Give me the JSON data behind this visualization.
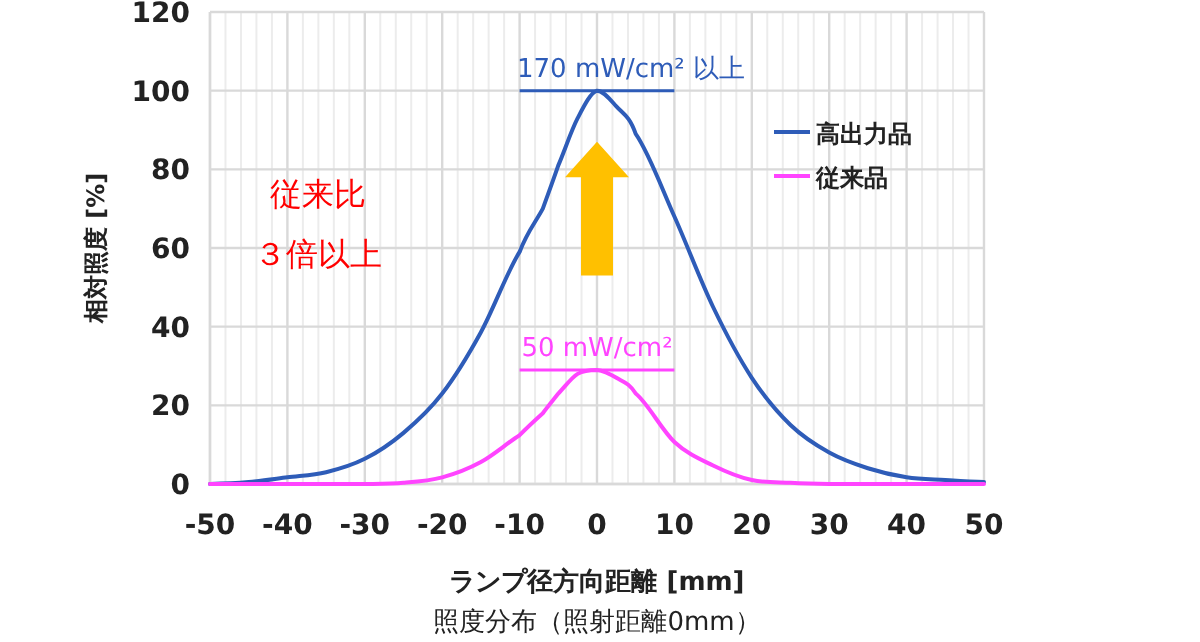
{
  "chart_data": {
    "type": "line",
    "xlabel": "ランプ径方向距離 [mm]",
    "ylabel": "相対照度 [%]",
    "xlim": [
      -50,
      50
    ],
    "xticks": [
      -50,
      -40,
      -30,
      -20,
      -10,
      0,
      10,
      20,
      30,
      40,
      50
    ],
    "ylim": [
      0,
      120
    ],
    "yticks": [
      0,
      20,
      40,
      60,
      80,
      100,
      120
    ],
    "grid": true,
    "legend": "top right",
    "line_style": "solid",
    "marker": "none",
    "series": [
      {
        "name": "高出力品",
        "color": "#2e5cb8",
        "x": [
          -50,
          -45,
          -40,
          -35,
          -30,
          -25,
          -20,
          -15,
          -10,
          -7,
          -5,
          -2.5,
          0,
          2.5,
          5,
          10,
          15,
          20,
          25,
          30,
          35,
          40,
          45,
          50
        ],
        "values": [
          0,
          0.5,
          1.7,
          3,
          6.4,
          13,
          23,
          38.6,
          59,
          70,
          81,
          93,
          100,
          96,
          89,
          68,
          45,
          27,
          15,
          8,
          4,
          1.7,
          1,
          0.5
        ]
      },
      {
        "name": "従来品",
        "color": "#ff44ff",
        "x": [
          -50,
          -30,
          -25,
          -20,
          -15,
          -10,
          -7,
          -5,
          -2.5,
          0,
          2.5,
          5,
          10,
          15,
          20,
          25,
          30,
          40,
          50
        ],
        "values": [
          0,
          0,
          0.3,
          1.7,
          5.6,
          12.4,
          18,
          23,
          28,
          29,
          27,
          23,
          10.7,
          4.7,
          1,
          0.3,
          0,
          0,
          0
        ]
      }
    ],
    "annotations": [
      {
        "text": "170 mW/cm² 以上",
        "x": 0,
        "y": 100
      },
      {
        "text": "50 mW/cm²",
        "x": 0,
        "y": 29
      },
      "従来比",
      "３倍以上",
      "照度分布（照射距離0mm）"
    ]
  }
}
